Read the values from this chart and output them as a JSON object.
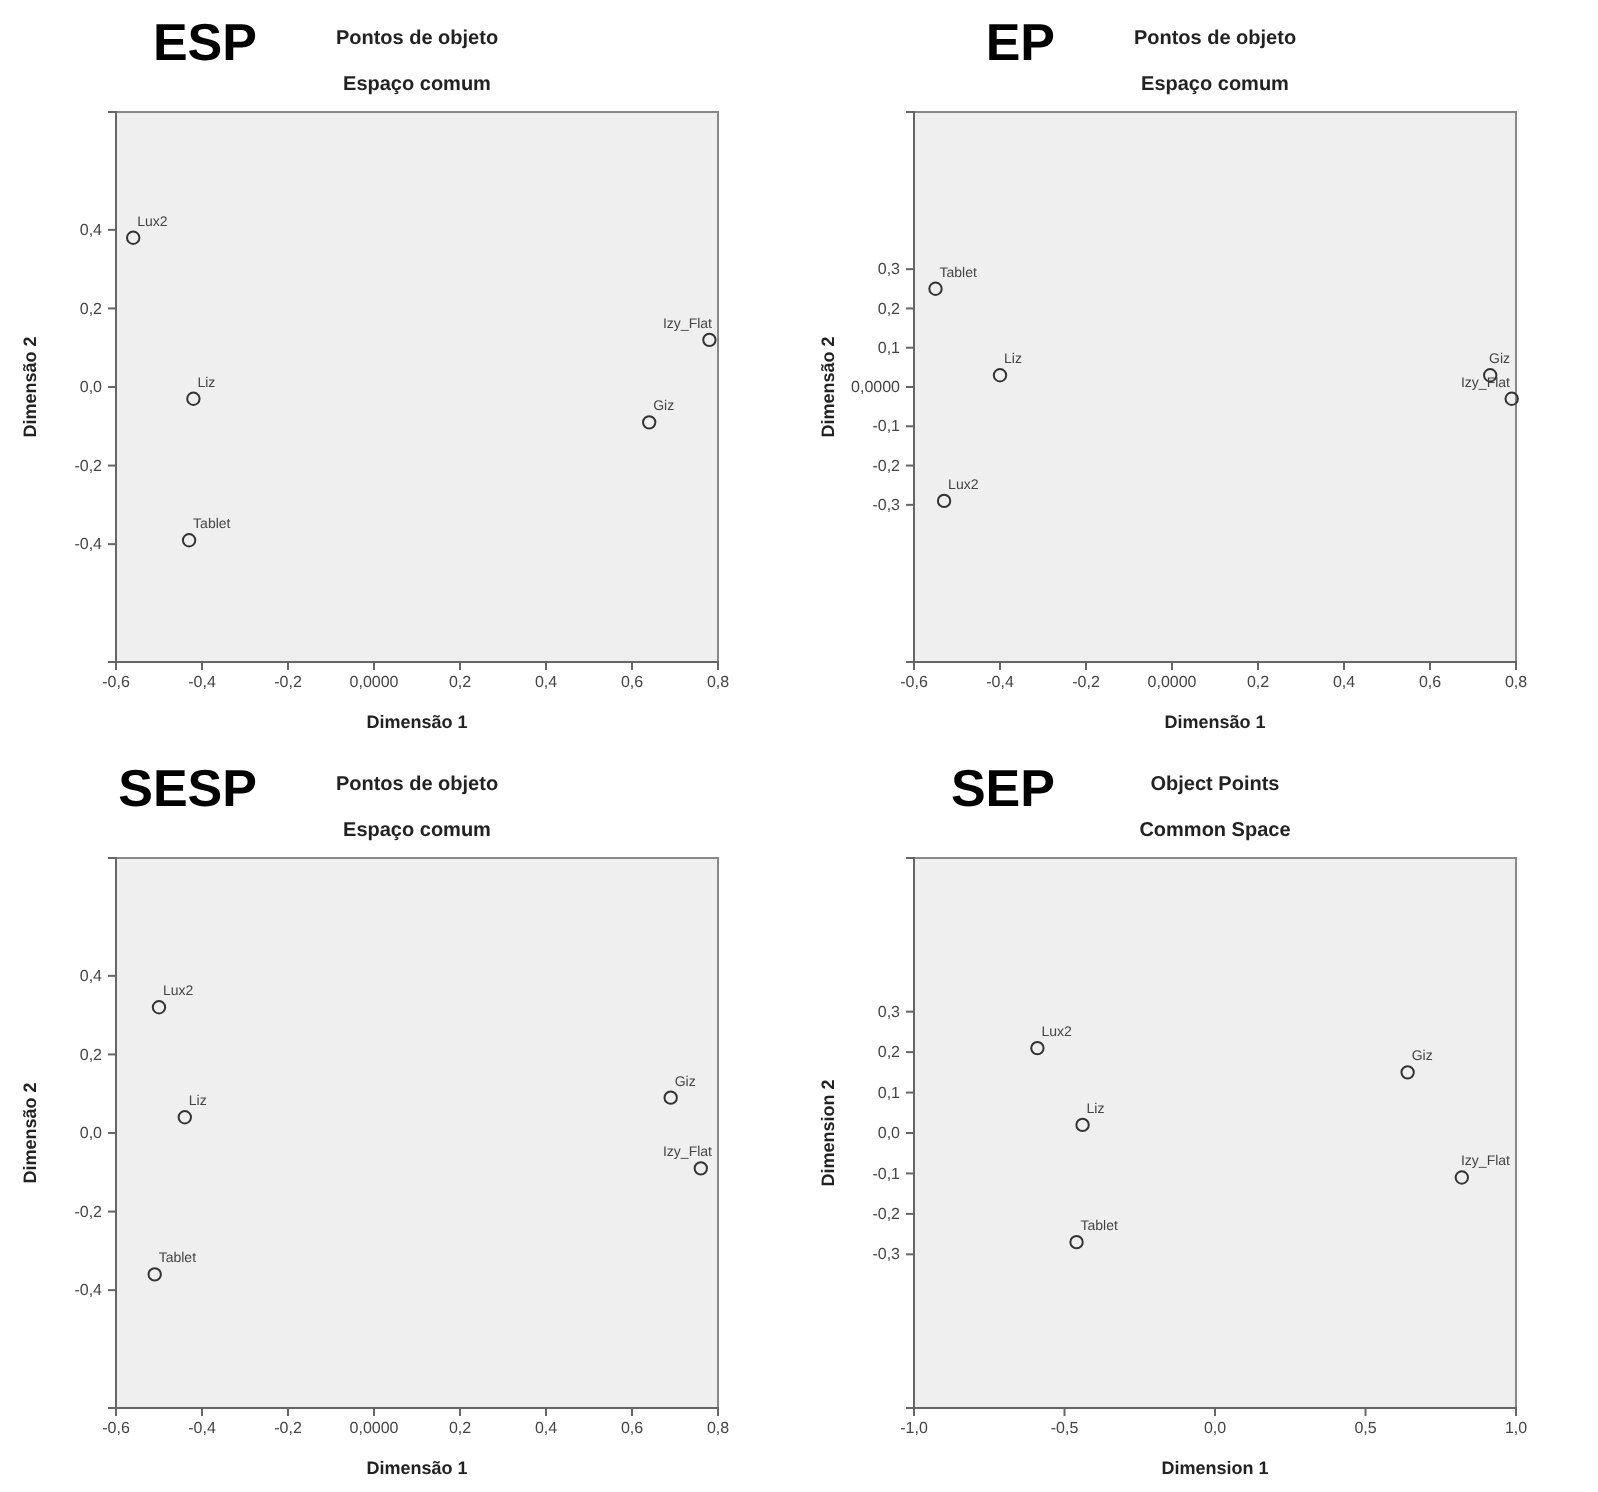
{
  "chart_data": [
    {
      "type": "scatter",
      "title": "Pontos de objeto",
      "subtitle": "Espaço comum",
      "xlabel": "Dimensão 1",
      "ylabel": "Dimensão 2",
      "marker": "circle",
      "grid": false,
      "xlim": [
        -0.6,
        0.8
      ],
      "ylim": [
        -0.7,
        0.7
      ],
      "xticks": [
        {
          "value": -0.6,
          "label": "-0,6"
        },
        {
          "value": -0.4,
          "label": "-0,4"
        },
        {
          "value": -0.2,
          "label": "-0,2"
        },
        {
          "value": 0,
          "label": "0,0000"
        },
        {
          "value": 0.2,
          "label": "0,2"
        },
        {
          "value": 0.4,
          "label": "0,4"
        },
        {
          "value": 0.6,
          "label": "0,6"
        },
        {
          "value": 0.8,
          "label": "0,8"
        }
      ],
      "yticks": [
        {
          "value": -0.4,
          "label": "-0,4"
        },
        {
          "value": -0.2,
          "label": "-0,2"
        },
        {
          "value": 0,
          "label": "0,0"
        },
        {
          "value": 0.2,
          "label": "0,2"
        },
        {
          "value": 0.4,
          "label": "0,4"
        }
      ],
      "series": [
        {
          "color": "#333333",
          "x": [
            -0.56,
            -0.42,
            -0.43,
            0.64,
            0.78
          ],
          "values": [
            0.38,
            -0.03,
            -0.39,
            -0.09,
            0.12
          ]
        }
      ],
      "annotations": [
        "ESP",
        {
          "text": "Lux2",
          "x": -0.56,
          "y": 0.38
        },
        {
          "text": "Liz",
          "x": -0.42,
          "y": -0.03
        },
        {
          "text": "Tablet",
          "x": -0.43,
          "y": -0.39
        },
        {
          "text": "Giz",
          "x": 0.64,
          "y": -0.09
        },
        {
          "text": "Izy_Flat",
          "x": 0.78,
          "y": 0.12
        }
      ]
    },
    {
      "type": "scatter",
      "title": "Pontos de objeto",
      "subtitle": "Espaço comum",
      "xlabel": "Dimensão 1",
      "ylabel": "Dimensão 2",
      "marker": "circle",
      "grid": false,
      "xlim": [
        -0.6,
        0.8
      ],
      "ylim": [
        -0.7,
        0.7
      ],
      "xticks": [
        {
          "value": -0.6,
          "label": "-0,6"
        },
        {
          "value": -0.4,
          "label": "-0,4"
        },
        {
          "value": -0.2,
          "label": "-0,2"
        },
        {
          "value": 0,
          "label": "0,0000"
        },
        {
          "value": 0.2,
          "label": "0,2"
        },
        {
          "value": 0.4,
          "label": "0,4"
        },
        {
          "value": 0.6,
          "label": "0,6"
        },
        {
          "value": 0.8,
          "label": "0,8"
        }
      ],
      "yticks": [
        {
          "value": -0.3,
          "label": "-0,3"
        },
        {
          "value": -0.2,
          "label": "-0,2"
        },
        {
          "value": -0.1,
          "label": "-0,1"
        },
        {
          "value": 0,
          "label": "0,0000"
        },
        {
          "value": 0.1,
          "label": "0,1"
        },
        {
          "value": 0.2,
          "label": "0,2"
        },
        {
          "value": 0.3,
          "label": "0,3"
        }
      ],
      "series": [
        {
          "color": "#333333",
          "x": [
            -0.55,
            -0.4,
            -0.53,
            0.74,
            0.79
          ],
          "values": [
            0.25,
            0.03,
            -0.29,
            0.03,
            -0.03
          ]
        }
      ],
      "annotations": [
        "EP",
        {
          "text": "Tablet",
          "x": -0.55,
          "y": 0.25
        },
        {
          "text": "Liz",
          "x": -0.4,
          "y": 0.03
        },
        {
          "text": "Lux2",
          "x": -0.53,
          "y": -0.29
        },
        {
          "text": "Giz",
          "x": 0.74,
          "y": 0.03
        },
        {
          "text": "Izy_Flat",
          "x": 0.79,
          "y": -0.03
        }
      ]
    },
    {
      "type": "scatter",
      "title": "Pontos de objeto",
      "subtitle": "Espaço comum",
      "xlabel": "Dimensão 1",
      "ylabel": "Dimensão 2",
      "marker": "circle",
      "grid": false,
      "xlim": [
        -0.6,
        0.8
      ],
      "ylim": [
        -0.7,
        0.7
      ],
      "xticks": [
        {
          "value": -0.6,
          "label": "-0,6"
        },
        {
          "value": -0.4,
          "label": "-0,4"
        },
        {
          "value": -0.2,
          "label": "-0,2"
        },
        {
          "value": 0,
          "label": "0,0000"
        },
        {
          "value": 0.2,
          "label": "0,2"
        },
        {
          "value": 0.4,
          "label": "0,4"
        },
        {
          "value": 0.6,
          "label": "0,6"
        },
        {
          "value": 0.8,
          "label": "0,8"
        }
      ],
      "yticks": [
        {
          "value": -0.4,
          "label": "-0,4"
        },
        {
          "value": -0.2,
          "label": "-0,2"
        },
        {
          "value": 0,
          "label": "0,0"
        },
        {
          "value": 0.2,
          "label": "0,2"
        },
        {
          "value": 0.4,
          "label": "0,4"
        }
      ],
      "series": [
        {
          "color": "#333333",
          "x": [
            -0.5,
            -0.44,
            -0.51,
            0.69,
            0.76
          ],
          "values": [
            0.32,
            0.04,
            -0.36,
            0.09,
            -0.09
          ]
        }
      ],
      "annotations": [
        "SESP",
        {
          "text": "Lux2",
          "x": -0.5,
          "y": 0.32
        },
        {
          "text": "Liz",
          "x": -0.44,
          "y": 0.04
        },
        {
          "text": "Tablet",
          "x": -0.51,
          "y": -0.36
        },
        {
          "text": "Giz",
          "x": 0.69,
          "y": 0.09
        },
        {
          "text": "Izy_Flat",
          "x": 0.76,
          "y": -0.09
        }
      ]
    },
    {
      "type": "scatter",
      "title": "Object Points",
      "subtitle": "Common Space",
      "xlabel": "Dimension 1",
      "ylabel": "Dimension 2",
      "marker": "circle",
      "grid": false,
      "xlim": [
        -1.0,
        1.0
      ],
      "ylim": [
        -0.68,
        0.68
      ],
      "xticks": [
        {
          "value": -1.0,
          "label": "-1,0"
        },
        {
          "value": -0.5,
          "label": "-0,5"
        },
        {
          "value": 0,
          "label": "0,0"
        },
        {
          "value": 0.5,
          "label": "0,5"
        },
        {
          "value": 1.0,
          "label": "1,0"
        }
      ],
      "yticks": [
        {
          "value": -0.3,
          "label": "-0,3"
        },
        {
          "value": -0.2,
          "label": "-0,2"
        },
        {
          "value": -0.1,
          "label": "-0,1"
        },
        {
          "value": 0,
          "label": "0,0"
        },
        {
          "value": 0.1,
          "label": "0,1"
        },
        {
          "value": 0.2,
          "label": "0,2"
        },
        {
          "value": 0.3,
          "label": "0,3"
        }
      ],
      "series": [
        {
          "color": "#333333",
          "x": [
            -0.59,
            -0.44,
            -0.46,
            0.64,
            0.82
          ],
          "values": [
            0.21,
            0.02,
            -0.27,
            0.15,
            -0.11
          ]
        }
      ],
      "annotations": [
        "SEP",
        {
          "text": "Lux2",
          "x": -0.59,
          "y": 0.21
        },
        {
          "text": "Liz",
          "x": -0.44,
          "y": 0.02
        },
        {
          "text": "Tablet",
          "x": -0.46,
          "y": -0.27
        },
        {
          "text": "Giz",
          "x": 0.64,
          "y": 0.15
        },
        {
          "text": "Izy_Flat",
          "x": 0.82,
          "y": -0.11
        }
      ]
    }
  ]
}
